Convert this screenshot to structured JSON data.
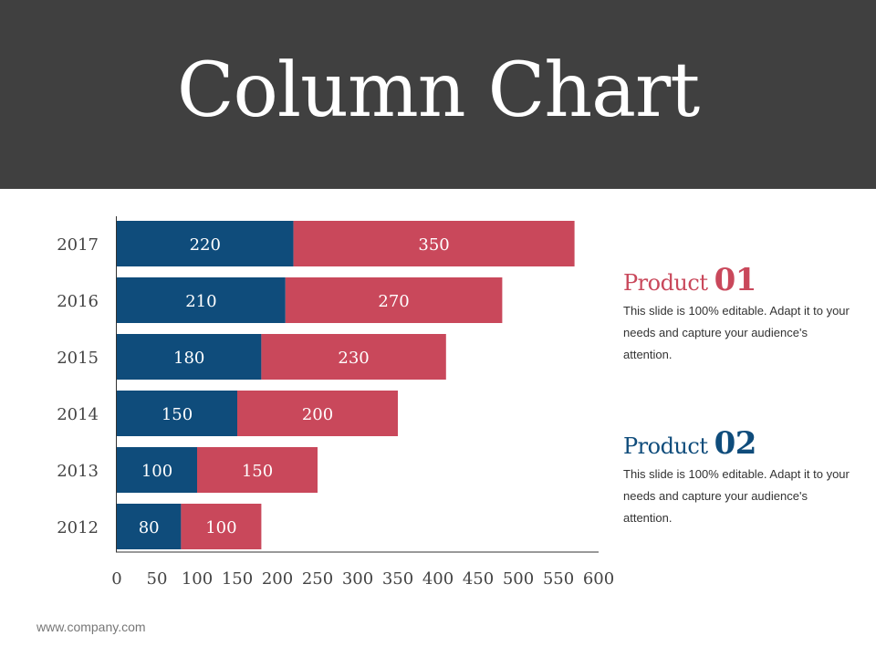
{
  "title": "Column Chart",
  "chart_data": {
    "type": "bar",
    "orientation": "horizontal",
    "stacked": true,
    "categories": [
      "2017",
      "2016",
      "2015",
      "2014",
      "2013",
      "2012"
    ],
    "series": [
      {
        "values": [
          220,
          210,
          180,
          150,
          100,
          80
        ],
        "color": "#0f4c7b"
      },
      {
        "values": [
          350,
          270,
          230,
          200,
          150,
          100
        ],
        "color": "#c9485b"
      }
    ],
    "xlim": [
      0,
      600
    ],
    "xticks": [
      0,
      50,
      100,
      150,
      200,
      250,
      300,
      350,
      400,
      450,
      500,
      550,
      600
    ],
    "grid": false,
    "data_labels": true
  },
  "products": [
    {
      "label": "Product",
      "number": "01",
      "color": "#c9485b",
      "description": "This slide is 100% editable. Adapt it to your needs and capture your audience's attention."
    },
    {
      "label": "Product",
      "number": "02",
      "color": "#0f4c7b",
      "description": "This slide is 100% editable. Adapt it to your needs and capture your audience's attention."
    }
  ],
  "footer": "www.company.com"
}
